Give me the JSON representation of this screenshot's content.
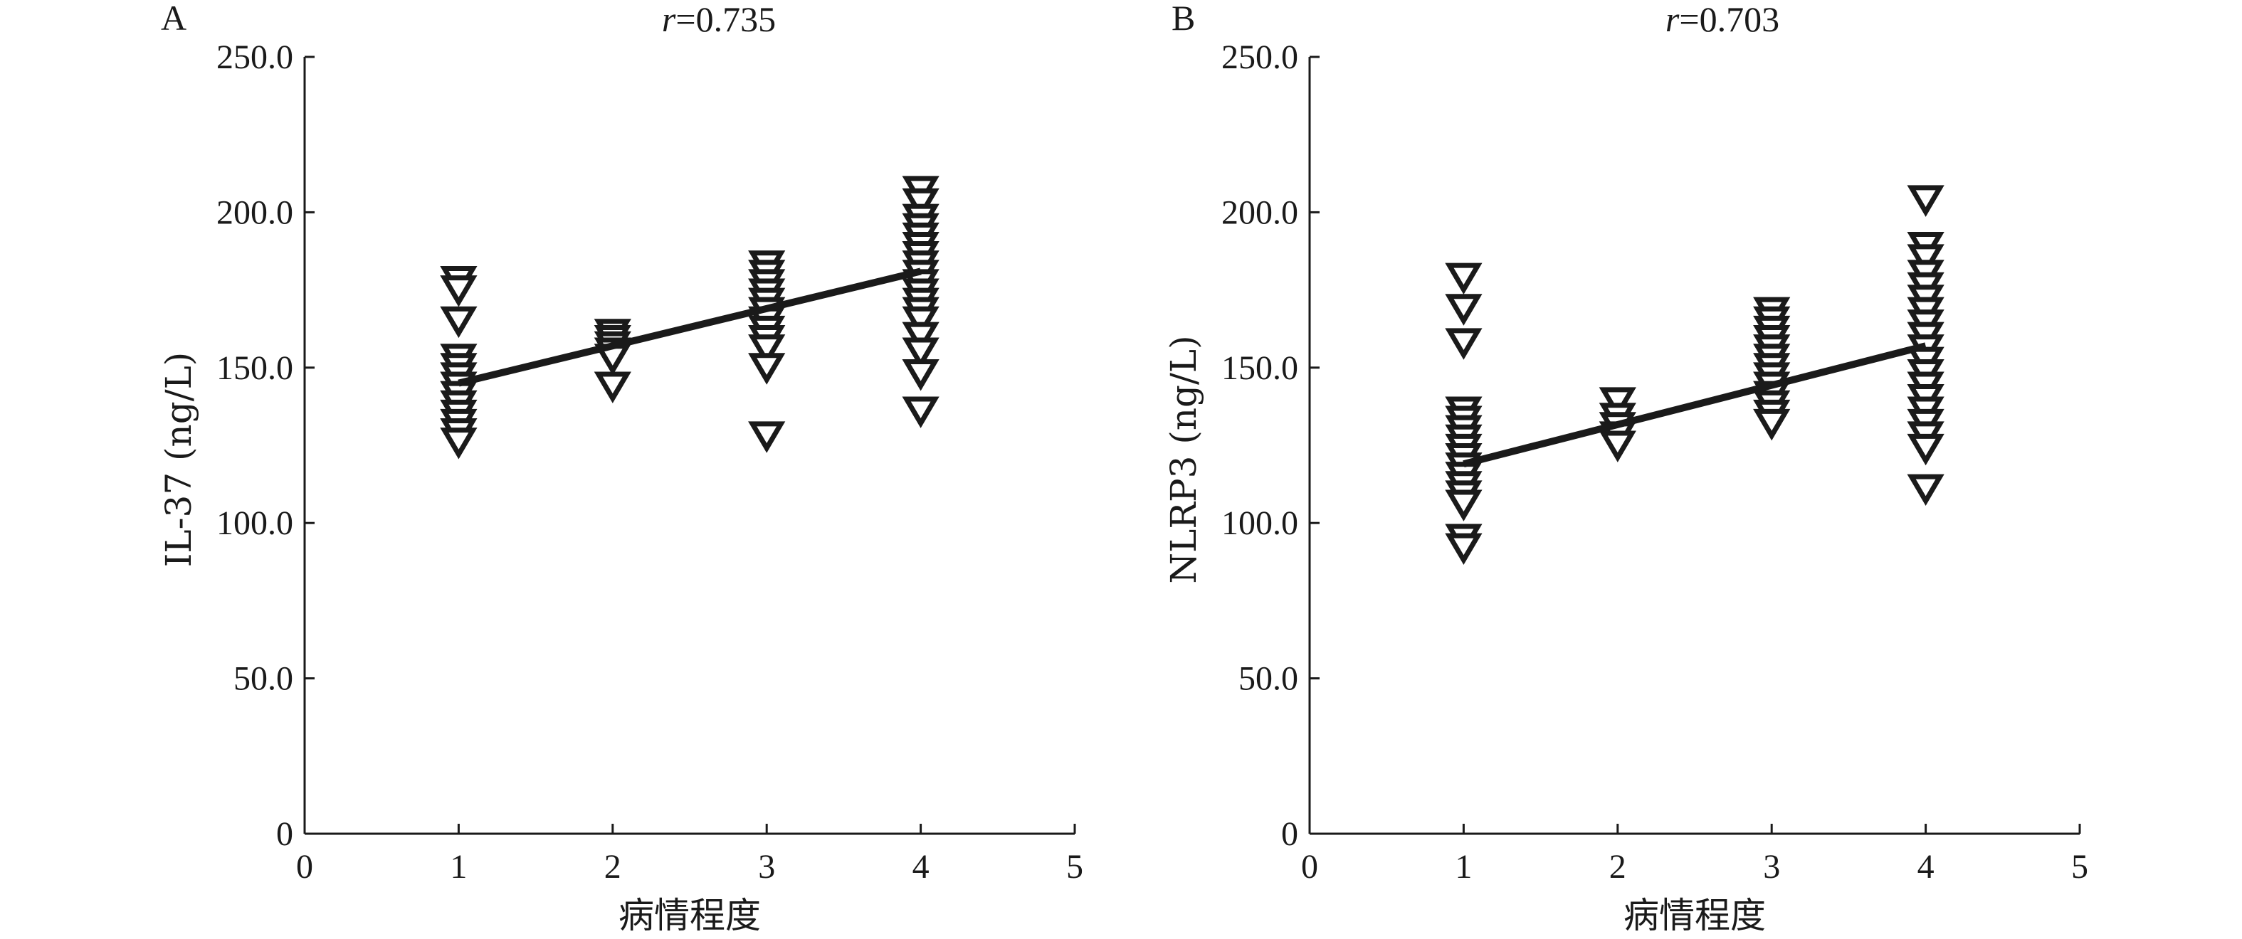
{
  "chart_data": [
    {
      "type": "scatter",
      "panel_label": "A",
      "title_var": "r",
      "title_value": "=0.735",
      "xlabel": "病情程度",
      "ylabel": "IL-37 (ng/L)",
      "xlim": [
        0,
        5
      ],
      "ylim": [
        0,
        250
      ],
      "x_ticks": [
        0,
        1,
        2,
        3,
        4,
        5
      ],
      "x_tick_labels": [
        "0",
        "1",
        "2",
        "3",
        "4",
        "5"
      ],
      "y_ticks": [
        0,
        50,
        100,
        150,
        200,
        250
      ],
      "y_tick_labels": [
        "0",
        "50.0",
        "100.0",
        "150.0",
        "200.0",
        "250.0"
      ],
      "marker": "open-down-triangle",
      "fit_line": {
        "x": [
          1,
          4
        ],
        "y": [
          145,
          181
        ]
      },
      "points": [
        {
          "x": 1,
          "y": 178
        },
        {
          "x": 1,
          "y": 175
        },
        {
          "x": 1,
          "y": 165
        },
        {
          "x": 1,
          "y": 153
        },
        {
          "x": 1,
          "y": 150
        },
        {
          "x": 1,
          "y": 147
        },
        {
          "x": 1,
          "y": 144
        },
        {
          "x": 1,
          "y": 141
        },
        {
          "x": 1,
          "y": 138
        },
        {
          "x": 1,
          "y": 135
        },
        {
          "x": 1,
          "y": 132
        },
        {
          "x": 1,
          "y": 129
        },
        {
          "x": 1,
          "y": 126
        },
        {
          "x": 2,
          "y": 161
        },
        {
          "x": 2,
          "y": 159
        },
        {
          "x": 2,
          "y": 157
        },
        {
          "x": 2,
          "y": 155
        },
        {
          "x": 2,
          "y": 153
        },
        {
          "x": 2,
          "y": 144
        },
        {
          "x": 3,
          "y": 183
        },
        {
          "x": 3,
          "y": 180
        },
        {
          "x": 3,
          "y": 177
        },
        {
          "x": 3,
          "y": 174
        },
        {
          "x": 3,
          "y": 171
        },
        {
          "x": 3,
          "y": 168
        },
        {
          "x": 3,
          "y": 165
        },
        {
          "x": 3,
          "y": 162
        },
        {
          "x": 3,
          "y": 159
        },
        {
          "x": 3,
          "y": 156
        },
        {
          "x": 3,
          "y": 150
        },
        {
          "x": 3,
          "y": 128
        },
        {
          "x": 4,
          "y": 207
        },
        {
          "x": 4,
          "y": 203
        },
        {
          "x": 4,
          "y": 198
        },
        {
          "x": 4,
          "y": 195
        },
        {
          "x": 4,
          "y": 192
        },
        {
          "x": 4,
          "y": 189
        },
        {
          "x": 4,
          "y": 186
        },
        {
          "x": 4,
          "y": 183
        },
        {
          "x": 4,
          "y": 180
        },
        {
          "x": 4,
          "y": 177
        },
        {
          "x": 4,
          "y": 174
        },
        {
          "x": 4,
          "y": 171
        },
        {
          "x": 4,
          "y": 168
        },
        {
          "x": 4,
          "y": 165
        },
        {
          "x": 4,
          "y": 160
        },
        {
          "x": 4,
          "y": 155
        },
        {
          "x": 4,
          "y": 148
        },
        {
          "x": 4,
          "y": 136
        }
      ]
    },
    {
      "type": "scatter",
      "panel_label": "B",
      "title_var": "r",
      "title_value": "=0.703",
      "xlabel": "病情程度",
      "ylabel": "NLRP3 (ng/L)",
      "xlim": [
        0,
        5
      ],
      "ylim": [
        0,
        250
      ],
      "x_ticks": [
        0,
        1,
        2,
        3,
        4,
        5
      ],
      "x_tick_labels": [
        "0",
        "1",
        "2",
        "3",
        "4",
        "5"
      ],
      "y_ticks": [
        0,
        50,
        100,
        150,
        200,
        250
      ],
      "y_tick_labels": [
        "0",
        "50.0",
        "100.0",
        "150.0",
        "200.0",
        "250.0"
      ],
      "marker": "open-down-triangle",
      "fit_line": {
        "x": [
          1,
          4
        ],
        "y": [
          119,
          157
        ]
      },
      "points": [
        {
          "x": 1,
          "y": 179
        },
        {
          "x": 1,
          "y": 169
        },
        {
          "x": 1,
          "y": 158
        },
        {
          "x": 1,
          "y": 136
        },
        {
          "x": 1,
          "y": 133
        },
        {
          "x": 1,
          "y": 130
        },
        {
          "x": 1,
          "y": 127
        },
        {
          "x": 1,
          "y": 124
        },
        {
          "x": 1,
          "y": 121
        },
        {
          "x": 1,
          "y": 118
        },
        {
          "x": 1,
          "y": 115
        },
        {
          "x": 1,
          "y": 112
        },
        {
          "x": 1,
          "y": 109
        },
        {
          "x": 1,
          "y": 106
        },
        {
          "x": 1,
          "y": 95
        },
        {
          "x": 1,
          "y": 92
        },
        {
          "x": 2,
          "y": 139
        },
        {
          "x": 2,
          "y": 134
        },
        {
          "x": 2,
          "y": 131
        },
        {
          "x": 2,
          "y": 128
        },
        {
          "x": 2,
          "y": 125
        },
        {
          "x": 3,
          "y": 168
        },
        {
          "x": 3,
          "y": 165
        },
        {
          "x": 3,
          "y": 162
        },
        {
          "x": 3,
          "y": 159
        },
        {
          "x": 3,
          "y": 156
        },
        {
          "x": 3,
          "y": 153
        },
        {
          "x": 3,
          "y": 150
        },
        {
          "x": 3,
          "y": 147
        },
        {
          "x": 3,
          "y": 144
        },
        {
          "x": 3,
          "y": 141
        },
        {
          "x": 3,
          "y": 138
        },
        {
          "x": 3,
          "y": 135
        },
        {
          "x": 3,
          "y": 132
        },
        {
          "x": 4,
          "y": 204
        },
        {
          "x": 4,
          "y": 189
        },
        {
          "x": 4,
          "y": 185
        },
        {
          "x": 4,
          "y": 180
        },
        {
          "x": 4,
          "y": 176
        },
        {
          "x": 4,
          "y": 172
        },
        {
          "x": 4,
          "y": 168
        },
        {
          "x": 4,
          "y": 164
        },
        {
          "x": 4,
          "y": 160
        },
        {
          "x": 4,
          "y": 156
        },
        {
          "x": 4,
          "y": 152
        },
        {
          "x": 4,
          "y": 148
        },
        {
          "x": 4,
          "y": 144
        },
        {
          "x": 4,
          "y": 140
        },
        {
          "x": 4,
          "y": 136
        },
        {
          "x": 4,
          "y": 132
        },
        {
          "x": 4,
          "y": 128
        },
        {
          "x": 4,
          "y": 124
        },
        {
          "x": 4,
          "y": 111
        }
      ]
    }
  ]
}
